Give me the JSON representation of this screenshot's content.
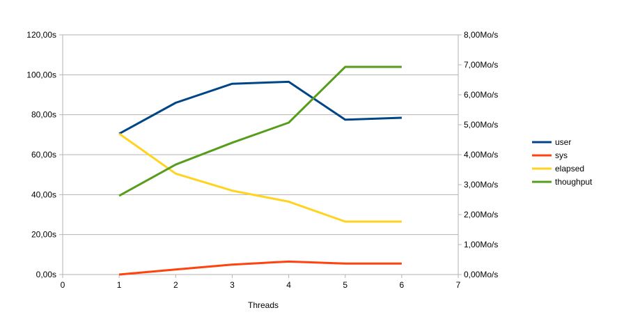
{
  "chart_data": {
    "type": "line",
    "xlabel": "Threads",
    "x": [
      1,
      2,
      3,
      4,
      5,
      6
    ],
    "xlim": [
      0,
      7
    ],
    "x_ticks": [
      "0",
      "1",
      "2",
      "3",
      "4",
      "5",
      "6",
      "7"
    ],
    "ylim_left": [
      0,
      120
    ],
    "y_ticks_left": [
      "0,00s",
      "20,00s",
      "40,00s",
      "60,00s",
      "80,00s",
      "100,00s",
      "120,00s"
    ],
    "ylim_right": [
      0,
      8
    ],
    "y_ticks_right": [
      "0,00Mo/s",
      "1,00Mo/s",
      "2,00Mo/s",
      "3,00Mo/s",
      "4,00Mo/s",
      "5,00Mo/s",
      "6,00Mo/s",
      "7,00Mo/s",
      "8,00Mo/s"
    ],
    "grid": "horizontal",
    "legend_position": "right",
    "series": [
      {
        "name": "user",
        "axis": "left",
        "color": "#004586",
        "values": [
          70.5,
          86,
          95.5,
          96.5,
          77.5,
          78.5
        ]
      },
      {
        "name": "sys",
        "axis": "left",
        "color": "#ff420e",
        "values": [
          0,
          2.5,
          5,
          6.5,
          5.5,
          5.5
        ]
      },
      {
        "name": "elapsed",
        "axis": "left",
        "color": "#ffd320",
        "values": [
          70.5,
          50.5,
          42,
          36.5,
          26.5,
          26.5
        ]
      },
      {
        "name": "thoughput",
        "axis": "right",
        "color": "#579d1c",
        "values": [
          2.63,
          3.67,
          4.4,
          5.07,
          6.93,
          6.93
        ]
      }
    ]
  }
}
